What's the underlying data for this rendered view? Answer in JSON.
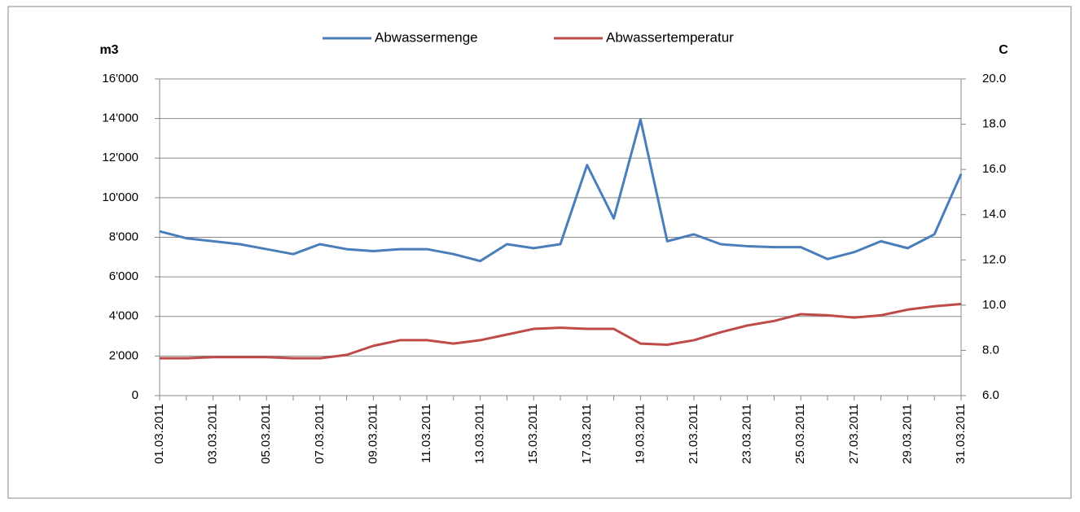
{
  "chart_data": {
    "type": "line",
    "ylabel": "m3",
    "y2label": "C",
    "categories": [
      "01.03.2011",
      null,
      "03.03.2011",
      null,
      "05.03.2011",
      null,
      "07.03.2011",
      null,
      "09.03.2011",
      null,
      "11.03.2011",
      null,
      "13.03.2011",
      null,
      "15.03.2011",
      null,
      "17.03.2011",
      null,
      "19.03.2011",
      null,
      "21.03.2011",
      null,
      "23.03.2011",
      null,
      "25.03.2011",
      null,
      "27.03.2011",
      null,
      "29.03.2011",
      null,
      "31.03.2011"
    ],
    "series": [
      {
        "name": "Abwassermenge",
        "color": "#4a7ebb",
        "axis": "y",
        "values": [
          8300,
          7950,
          7800,
          7650,
          7400,
          7150,
          7650,
          7400,
          7300,
          7400,
          7400,
          7150,
          6800,
          7650,
          7450,
          7650,
          11650,
          8950,
          13950,
          7800,
          8150,
          7650,
          7550,
          7500,
          7500,
          6900,
          7250,
          7800,
          7450,
          8150,
          11200
        ]
      },
      {
        "name": "Abwassertemperatur",
        "color": "#be4b48",
        "axis": "y2",
        "values": [
          7.65,
          7.65,
          7.7,
          7.7,
          7.7,
          7.65,
          7.65,
          7.8,
          8.2,
          8.45,
          8.45,
          8.3,
          8.45,
          8.7,
          8.95,
          9.0,
          8.95,
          8.95,
          8.3,
          8.25,
          8.45,
          8.8,
          9.1,
          9.3,
          9.6,
          9.55,
          9.45,
          9.55,
          9.8,
          9.95,
          10.05
        ]
      }
    ],
    "ylim": [
      0,
      16000
    ],
    "yticks": [
      0,
      {
        "value": 2000,
        "label": "2'000"
      },
      {
        "value": 4000,
        "label": "4'000"
      },
      {
        "value": 6000,
        "label": "6'000"
      },
      {
        "value": 8000,
        "label": "8'000"
      },
      {
        "value": 10000,
        "label": "10'000"
      },
      {
        "value": 12000,
        "label": "12'000"
      },
      {
        "value": 14000,
        "label": "14'000"
      },
      {
        "value": 16000,
        "label": "16'000"
      }
    ],
    "y2lim": [
      6,
      20
    ],
    "y2ticks": [
      {
        "value": 6,
        "label": "6.0"
      },
      {
        "value": 8,
        "label": "8.0"
      },
      {
        "value": 10,
        "label": "10.0"
      },
      {
        "value": 12,
        "label": "12.0"
      },
      {
        "value": 14,
        "label": "14.0"
      },
      {
        "value": 16,
        "label": "16.0"
      },
      {
        "value": 18,
        "label": "18.0"
      },
      {
        "value": 20,
        "label": "20.0"
      }
    ],
    "grid": true,
    "legend": "top"
  }
}
